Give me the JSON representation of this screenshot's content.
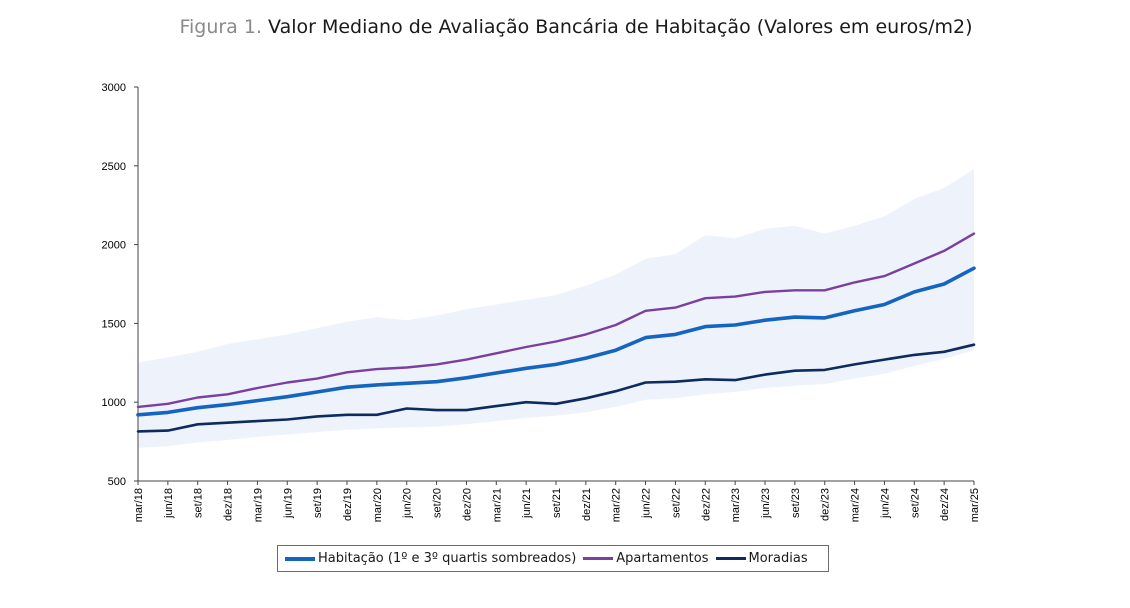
{
  "figure": {
    "prefix": "Figura 1.",
    "title": "Valor Mediano de Avaliação Bancária de Habitação (Valores em euros/m2)"
  },
  "chart_data": {
    "type": "line",
    "title": "Valor Mediano de Avaliação Bancária de Habitação (Valores em euros/m2)",
    "xlabel": "",
    "ylabel": "",
    "ylim": [
      500,
      3000
    ],
    "yticks": [
      500,
      1000,
      1500,
      2000,
      2500,
      3000
    ],
    "grid": false,
    "legend_position": "bottom",
    "x_labels": [
      "mar/18",
      "jun/18",
      "set/18",
      "dez/18",
      "mar/19",
      "jun/19",
      "set/19",
      "dez/19",
      "mar/20",
      "jun/20",
      "set/20",
      "dez/20",
      "mar/21",
      "jun/21",
      "set/21",
      "dez/21",
      "mar/22",
      "jun/22",
      "set/22",
      "dez/22",
      "mar/23",
      "jun/23",
      "set/23",
      "dez/23",
      "mar/24",
      "jun/24",
      "set/24",
      "dez/24",
      "mar/25"
    ],
    "series": [
      {
        "name": "Habitação (1º e 3º quartis sombreados)",
        "color": "#1565c0",
        "values": [
          920,
          935,
          965,
          985,
          1010,
          1035,
          1065,
          1095,
          1110,
          1120,
          1130,
          1155,
          1185,
          1215,
          1240,
          1280,
          1330,
          1410,
          1430,
          1480,
          1490,
          1520,
          1540,
          1535,
          1580,
          1620,
          1700,
          1750,
          1850
        ]
      },
      {
        "name": "Apartamentos",
        "color": "#7b3fa0",
        "values": [
          970,
          990,
          1030,
          1050,
          1090,
          1125,
          1150,
          1190,
          1210,
          1220,
          1240,
          1270,
          1310,
          1350,
          1385,
          1430,
          1490,
          1580,
          1600,
          1660,
          1670,
          1700,
          1710,
          1710,
          1760,
          1800,
          1880,
          1960,
          2070
        ]
      },
      {
        "name": "Moradias",
        "color": "#0d2b5e",
        "values": [
          815,
          820,
          860,
          870,
          880,
          890,
          910,
          920,
          920,
          960,
          950,
          950,
          975,
          1000,
          990,
          1025,
          1070,
          1125,
          1130,
          1145,
          1140,
          1175,
          1200,
          1205,
          1240,
          1270,
          1300,
          1320,
          1365
        ]
      }
    ],
    "shaded_band": {
      "series": "Habitação (1º e 3º quartis sombreados)",
      "color": "#eef3fb",
      "q1": [
        710,
        720,
        745,
        760,
        780,
        795,
        810,
        825,
        835,
        840,
        845,
        860,
        880,
        900,
        915,
        935,
        970,
        1015,
        1025,
        1050,
        1065,
        1090,
        1105,
        1115,
        1150,
        1180,
        1230,
        1275,
        1330
      ],
      "q3": [
        1250,
        1285,
        1320,
        1370,
        1400,
        1430,
        1470,
        1510,
        1540,
        1520,
        1550,
        1590,
        1620,
        1650,
        1680,
        1740,
        1810,
        1910,
        1940,
        2060,
        2040,
        2100,
        2120,
        2070,
        2120,
        2180,
        2290,
        2360,
        2480
      ]
    }
  }
}
